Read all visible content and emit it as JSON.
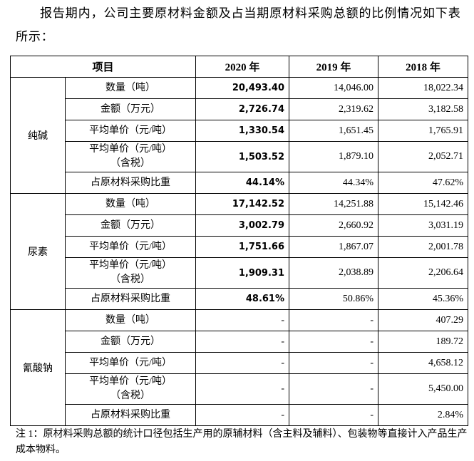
{
  "intro": "报告期内，公司主要原材料金额及占当期原材料采购总额的比例情况如下表所示：",
  "table": {
    "header": [
      "项目",
      "2020 年",
      "2019 年",
      "2018 年"
    ],
    "groups": [
      {
        "name": "纯碱",
        "rows": [
          {
            "item": "数量（吨）",
            "values": [
              "20,493.40",
              "14,046.00",
              "18,022.34"
            ]
          },
          {
            "item": "金额（万元）",
            "values": [
              "2,726.74",
              "2,319.62",
              "3,182.58"
            ]
          },
          {
            "item": "平均单价（元/吨）",
            "values": [
              "1,330.54",
              "1,651.45",
              "1,765.91"
            ]
          },
          {
            "item": "平均单价（元/吨）\n（含税）",
            "values": [
              "1,503.52",
              "1,879.10",
              "2,052.71"
            ]
          },
          {
            "item": "占原材料采购比重",
            "values": [
              "44.14%",
              "44.34%",
              "47.62%"
            ]
          }
        ]
      },
      {
        "name": "尿素",
        "rows": [
          {
            "item": "数量（吨）",
            "values": [
              "17,142.52",
              "14,251.88",
              "15,142.46"
            ]
          },
          {
            "item": "金额（万元）",
            "values": [
              "3,002.79",
              "2,660.92",
              "3,031.19"
            ]
          },
          {
            "item": "平均单价（元/吨）",
            "values": [
              "1,751.66",
              "1,867.07",
              "2,001.78"
            ]
          },
          {
            "item": "平均单价（元/吨）\n（含税）",
            "values": [
              "1,909.31",
              "2,038.89",
              "2,206.64"
            ]
          },
          {
            "item": "占原材料采购比重",
            "values": [
              "48.61%",
              "50.86%",
              "45.36%"
            ]
          }
        ]
      },
      {
        "name": "氰酸钠",
        "rows": [
          {
            "item": "数量（吨）",
            "values": [
              "-",
              "-",
              "407.29"
            ]
          },
          {
            "item": "金额（万元）",
            "values": [
              "-",
              "-",
              "189.72"
            ]
          },
          {
            "item": "平均单价（元/吨）",
            "values": [
              "-",
              "-",
              "4,658.12"
            ]
          },
          {
            "item": "平均单价（元/吨）\n（含税）",
            "values": [
              "-",
              "-",
              "5,450.00"
            ]
          },
          {
            "item": "占原材料采购比重",
            "values": [
              "-",
              "-",
              "2.84%"
            ]
          }
        ]
      }
    ]
  },
  "note": "注 1：原材料采购总额的统计口径包括生产用的原辅材料（含主料及辅料）、包装物等直接计入产品生产成本物料。"
}
